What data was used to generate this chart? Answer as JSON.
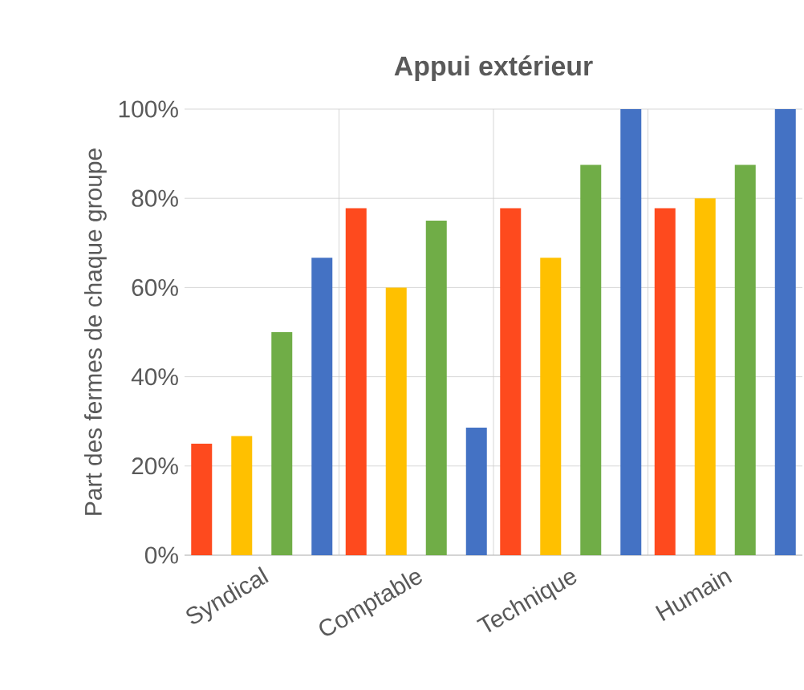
{
  "chart_data": {
    "type": "bar",
    "title": "Appui extérieur",
    "ylabel": "Part des fermes de chaque groupe",
    "categories": [
      "Syndical",
      "Comptable",
      "Technique",
      "Humain"
    ],
    "series": [
      {
        "color": "#fe4a1e",
        "values": [
          25,
          77.8,
          77.8,
          77.8
        ]
      },
      {
        "color": "#ffc000",
        "values": [
          26.7,
          60,
          66.7,
          80
        ]
      },
      {
        "color": "#70ad47",
        "values": [
          50,
          75,
          87.5,
          87.5
        ]
      },
      {
        "color": "#4472c4",
        "values": [
          66.7,
          28.6,
          100,
          100
        ]
      }
    ],
    "ylim": [
      0,
      100
    ],
    "yticks": [
      {
        "value": 0,
        "label": "0%"
      },
      {
        "value": 20,
        "label": "20%"
      },
      {
        "value": 40,
        "label": "40%"
      },
      {
        "value": 60,
        "label": "60%"
      },
      {
        "value": 80,
        "label": "80%"
      },
      {
        "value": 100,
        "label": "100%"
      }
    ],
    "grid": true
  }
}
